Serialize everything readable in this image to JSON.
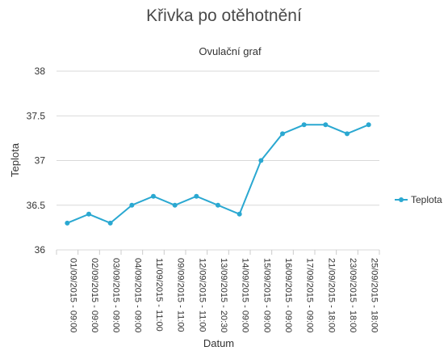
{
  "page": {
    "title": "Křivka po otěhotnění"
  },
  "chart_data": {
    "type": "line",
    "title": "Ovulační graf",
    "xlabel": "Datum",
    "ylabel": "Teplota",
    "ylim": [
      36,
      38
    ],
    "yticks": [
      "36",
      "36.5",
      "37",
      "37.5",
      "38"
    ],
    "grid": true,
    "legend_position": "right",
    "categories": [
      "01/09/2015 - 09:00",
      "02/09/2015 - 09:00",
      "03/09/2015 - 09:00",
      "04/09/2015 - 09:00",
      "11/09/2015 - 11:00",
      "09/09/2015 - 11:00",
      "12/09/2015 - 11:00",
      "13/09/2015 - 20:30",
      "14/09/2015 - 09:00",
      "15/09/2015 - 09:00",
      "16/09/2015 - 09:00",
      "17/09/2015 - 09:00",
      "21/09/2015 - 18:00",
      "23/09/2015 - 18:00",
      "25/09/2015 - 18:00"
    ],
    "series": [
      {
        "name": "Teplota",
        "color": "#2aa8d1",
        "values": [
          36.3,
          36.4,
          36.3,
          36.5,
          36.6,
          36.5,
          36.6,
          36.5,
          36.4,
          37.0,
          37.3,
          37.4,
          37.4,
          37.3,
          37.4
        ]
      }
    ]
  }
}
